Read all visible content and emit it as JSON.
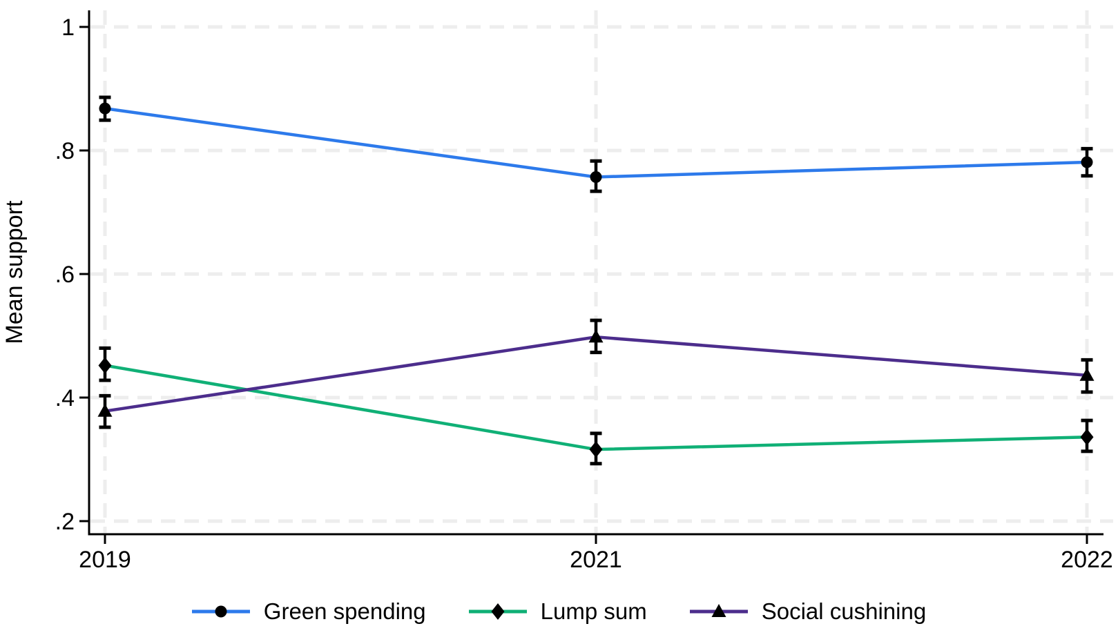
{
  "chart_data": {
    "type": "line",
    "ylabel": "Mean support",
    "categories": [
      "2019",
      "2021",
      "2022"
    ],
    "y_ticks": [
      ".2",
      ".4",
      ".6",
      ".8",
      "1"
    ],
    "y_tick_values": [
      0.2,
      0.4,
      0.6,
      0.8,
      1.0
    ],
    "ylim": [
      0.179,
      1.027
    ],
    "grid": "dashed horizontal and vertical at ticks",
    "legend_position": "bottom-center",
    "series": [
      {
        "name": "Green spending",
        "color": "#2D7AEB",
        "marker": "circle",
        "values": [
          0.868,
          0.757,
          0.781
        ],
        "ci_low": [
          0.849,
          0.734,
          0.759
        ],
        "ci_high": [
          0.886,
          0.783,
          0.803
        ]
      },
      {
        "name": "Lump sum",
        "color": "#10B076",
        "marker": "diamond",
        "values": [
          0.452,
          0.316,
          0.336
        ],
        "ci_low": [
          0.428,
          0.293,
          0.313
        ],
        "ci_high": [
          0.48,
          0.342,
          0.363
        ]
      },
      {
        "name": "Social cushining",
        "color": "#4C2D8C",
        "marker": "triangle",
        "values": [
          0.378,
          0.498,
          0.436
        ],
        "ci_low": [
          0.352,
          0.473,
          0.409
        ],
        "ci_high": [
          0.403,
          0.525,
          0.461
        ]
      }
    ],
    "colors": {
      "marker": "#000000",
      "error_bar": "#000000",
      "axis": "#000000",
      "gridline": "#EDEDED",
      "background": "#FFFFFF"
    }
  }
}
